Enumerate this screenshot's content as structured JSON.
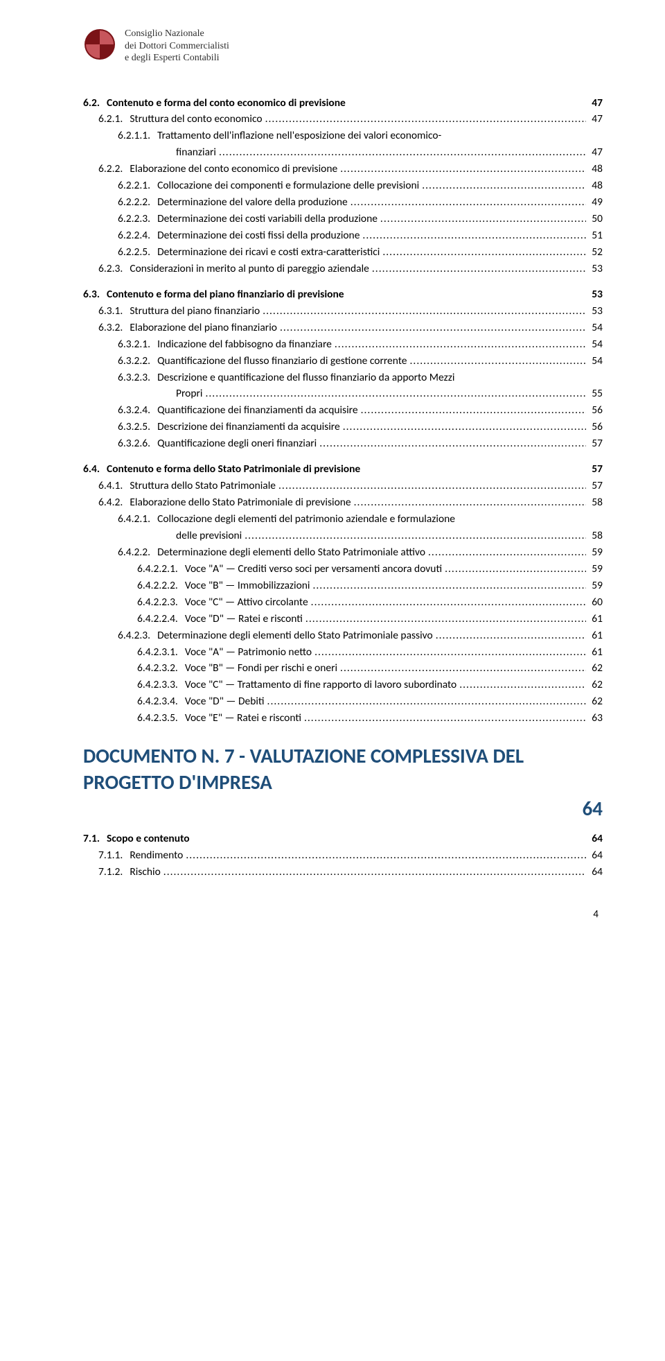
{
  "brand": {
    "line1": "Consiglio Nazionale",
    "line2": "dei Dottori Commercialisti",
    "line3": "e degli Esperti Contabili",
    "logo_colors": {
      "dark": "#7a1317",
      "light": "#c7565c"
    }
  },
  "page_number": "4",
  "big_heading": {
    "text": "DOCUMENTO N. 7 - VALUTAZIONE COMPLESSIVA DEL PROGETTO D'IMPRESA",
    "page": "64",
    "color": "#1f4e79"
  },
  "toc": [
    {
      "level": 1,
      "num": "6.2.",
      "label": "Contenuto e forma del conto economico di previsione",
      "page": "47",
      "leader": false
    },
    {
      "level": 2,
      "num": "6.2.1.",
      "label": "Struttura del conto economico",
      "page": "47",
      "leader": true
    },
    {
      "level": 3,
      "num": "6.2.1.1.",
      "label": "Trattamento dell'inflazione nell'esposizione dei valori economico-",
      "continuation": "finanziari",
      "page": "47",
      "leader": true
    },
    {
      "level": 2,
      "num": "6.2.2.",
      "label": "Elaborazione del conto economico di previsione",
      "page": "48",
      "leader": true
    },
    {
      "level": 3,
      "num": "6.2.2.1.",
      "label": "Collocazione dei componenti e formulazione delle previsioni",
      "page": "48",
      "leader": true
    },
    {
      "level": 3,
      "num": "6.2.2.2.",
      "label": "Determinazione del valore della produzione",
      "page": "49",
      "leader": true
    },
    {
      "level": 3,
      "num": "6.2.2.3.",
      "label": "Determinazione dei costi variabili della produzione",
      "page": "50",
      "leader": true
    },
    {
      "level": 3,
      "num": "6.2.2.4.",
      "label": "Determinazione dei costi fissi della produzione",
      "page": "51",
      "leader": true
    },
    {
      "level": 3,
      "num": "6.2.2.5.",
      "label": "Determinazione dei ricavi e costi extra-caratteristici",
      "page": "52",
      "leader": true
    },
    {
      "level": 2,
      "num": "6.2.3.",
      "label": "Considerazioni in merito al punto di pareggio aziendale",
      "page": "53",
      "leader": true
    },
    {
      "level": 1,
      "num": "6.3.",
      "label": "Contenuto e forma del piano finanziario di previsione",
      "page": "53",
      "leader": false
    },
    {
      "level": 2,
      "num": "6.3.1.",
      "label": "Struttura del piano finanziario",
      "page": "53",
      "leader": true
    },
    {
      "level": 2,
      "num": "6.3.2.",
      "label": "Elaborazione del piano finanziario",
      "page": "54",
      "leader": true
    },
    {
      "level": 3,
      "num": "6.3.2.1.",
      "label": "Indicazione del fabbisogno da finanziare",
      "page": "54",
      "leader": true
    },
    {
      "level": 3,
      "num": "6.3.2.2.",
      "label": "Quantificazione del flusso finanziario di gestione corrente",
      "page": "54",
      "leader": true
    },
    {
      "level": 3,
      "num": "6.3.2.3.",
      "label": "Descrizione e quantificazione del flusso finanziario da apporto Mezzi",
      "continuation": "Propri",
      "page": "55",
      "leader": true
    },
    {
      "level": 3,
      "num": "6.3.2.4.",
      "label": "Quantificazione dei finanziamenti da acquisire",
      "page": "56",
      "leader": true
    },
    {
      "level": 3,
      "num": "6.3.2.5.",
      "label": "Descrizione dei finanziamenti da acquisire",
      "page": "56",
      "leader": true
    },
    {
      "level": 3,
      "num": "6.3.2.6.",
      "label": "Quantificazione degli oneri finanziari",
      "page": "57",
      "leader": true
    },
    {
      "level": 1,
      "num": "6.4.",
      "label": "Contenuto e forma dello Stato Patrimoniale di previsione",
      "page": "57",
      "leader": false
    },
    {
      "level": 2,
      "num": "6.4.1.",
      "label": "Struttura dello Stato Patrimoniale",
      "page": "57",
      "leader": true
    },
    {
      "level": 2,
      "num": "6.4.2.",
      "label": "Elaborazione dello Stato Patrimoniale di previsione",
      "page": "58",
      "leader": true
    },
    {
      "level": 3,
      "num": "6.4.2.1.",
      "label": "Collocazione degli elementi del patrimonio aziendale e formulazione",
      "continuation": "delle previsioni",
      "page": "58",
      "leader": true
    },
    {
      "level": 3,
      "num": "6.4.2.2.",
      "label": "Determinazione degli elementi dello Stato Patrimoniale attivo",
      "page": "59",
      "leader": true
    },
    {
      "level": 4,
      "num": "6.4.2.2.1.",
      "label": "Voce \"A\" — Crediti verso soci per versamenti ancora dovuti",
      "page": "59",
      "leader": true
    },
    {
      "level": 4,
      "num": "6.4.2.2.2.",
      "label": "Voce \"B\" — Immobilizzazioni",
      "page": "59",
      "leader": true
    },
    {
      "level": 4,
      "num": "6.4.2.2.3.",
      "label": "Voce \"C\" — Attivo circolante",
      "page": "60",
      "leader": true
    },
    {
      "level": 4,
      "num": "6.4.2.2.4.",
      "label": "Voce \"D\" — Ratei e risconti",
      "page": "61",
      "leader": true
    },
    {
      "level": 3,
      "num": "6.4.2.3.",
      "label": "Determinazione degli elementi dello Stato Patrimoniale passivo",
      "page": "61",
      "leader": true
    },
    {
      "level": 4,
      "num": "6.4.2.3.1.",
      "label": "Voce \"A\" — Patrimonio netto",
      "page": "61",
      "leader": true
    },
    {
      "level": 4,
      "num": "6.4.2.3.2.",
      "label": "Voce \"B\" — Fondi per rischi e oneri",
      "page": "62",
      "leader": true
    },
    {
      "level": 4,
      "num": "6.4.2.3.3.",
      "label": "Voce \"C\" — Trattamento di fine rapporto di lavoro subordinato",
      "page": "62",
      "leader": true
    },
    {
      "level": 4,
      "num": "6.4.2.3.4.",
      "label": "Voce \"D\" — Debiti",
      "page": "62",
      "leader": true
    },
    {
      "level": 4,
      "num": "6.4.2.3.5.",
      "label": "Voce \"E\" — Ratei e risconti",
      "page": "63",
      "leader": true
    }
  ],
  "toc_after": [
    {
      "level": 1,
      "num": "7.1.",
      "label": "Scopo e contenuto",
      "page": "64",
      "leader": false
    },
    {
      "level": 2,
      "num": "7.1.1.",
      "label": "Rendimento",
      "page": "64",
      "leader": true
    },
    {
      "level": 2,
      "num": "7.1.2.",
      "label": "Rischio",
      "page": "64",
      "leader": true
    }
  ]
}
